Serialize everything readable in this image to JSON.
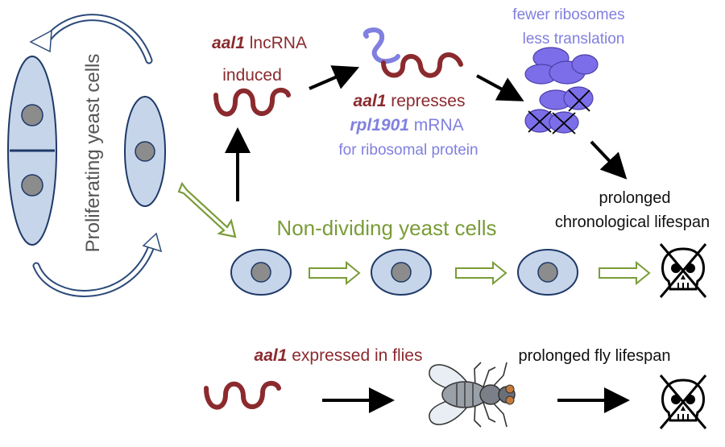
{
  "labels": {
    "proliferating": "Proliferating yeast cells",
    "aal1_italic": "aal1",
    "lncrna_suffix": "lncRNA",
    "induced": "induced",
    "represses_italic": "aal1",
    "represses_suffix": "represses",
    "rpl_italic": "rpl1901",
    "rpl_suffix": "mRNA",
    "for_ribosomal": "for ribosomal protein",
    "fewer_ribosomes": "fewer ribosomes",
    "less_translation": "less translation",
    "non_dividing": "Non-dividing yeast cells",
    "prolonged": "prolonged",
    "chronological": "chronological lifespan",
    "expressed_italic": "aal1",
    "expressed_suffix": "expressed in flies",
    "fly_lifespan": "prolonged fly lifespan"
  },
  "icons": [
    "lncrna-squiggle-icon",
    "mrna-squiggle-icon",
    "ribosome-icon",
    "skull-icon",
    "fly-icon",
    "arrow-icon"
  ],
  "colors": {
    "maroon": "#8b2a2e",
    "purple": "#8080e0",
    "green": "#7a9c38",
    "cell_fill": "#c6d5ea",
    "cell_stroke": "#1f3a68",
    "nucleus": "#8c8c8c"
  }
}
